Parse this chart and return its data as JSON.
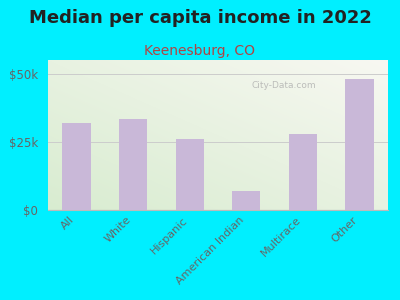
{
  "title": "Median per capita income in 2022",
  "subtitle": "Keenesburg, CO",
  "categories": [
    "All",
    "White",
    "Hispanic",
    "American Indian",
    "Multirace",
    "Other"
  ],
  "values": [
    32000,
    33500,
    26000,
    7000,
    28000,
    48000
  ],
  "bar_color": "#c9b8d8",
  "background_outer": "#00efff",
  "background_inner_top_right": "#f8f8f2",
  "background_inner_bottom_left": "#d8ecd0",
  "title_fontsize": 13,
  "subtitle_fontsize": 10,
  "subtitle_color": "#b04444",
  "title_color": "#222222",
  "tick_color": "#666666",
  "ylim": [
    0,
    55000
  ],
  "yticks": [
    0,
    25000,
    50000
  ],
  "ytick_labels": [
    "$0",
    "$25k",
    "$50k"
  ],
  "watermark": "City-Data.com"
}
